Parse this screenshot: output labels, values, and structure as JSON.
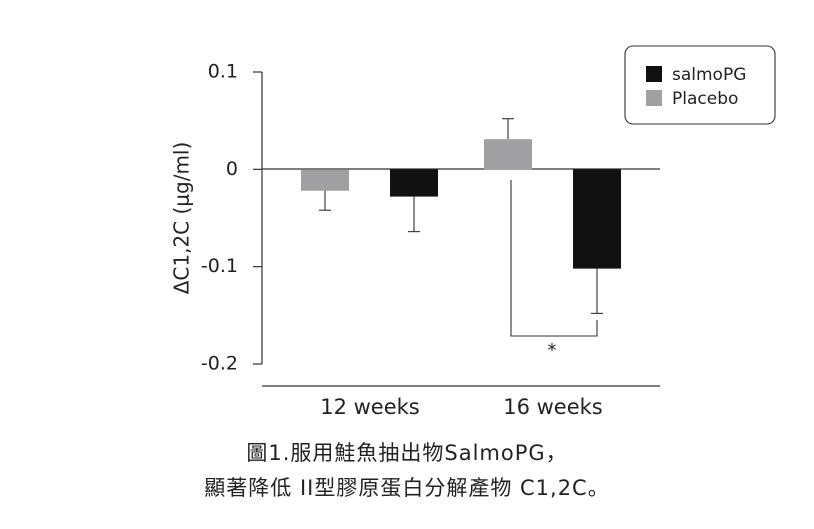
{
  "chart_data": {
    "type": "bar",
    "categories": [
      "12 weeks",
      "16 weeks"
    ],
    "series": [
      {
        "name": "Placebo",
        "color": "#a0a0a2",
        "values": [
          -0.022,
          0.031
        ],
        "errors": [
          0.02,
          0.021
        ]
      },
      {
        "name": "salmoPG",
        "color": "#111111",
        "values": [
          -0.028,
          -0.102
        ],
        "errors": [
          0.036,
          0.046
        ]
      }
    ],
    "ylabel": "ΔC1,2C (μg/ml)",
    "ylim": [
      -0.2,
      0.1
    ],
    "yticks": [
      0.1,
      0,
      -0.1,
      -0.2
    ],
    "ytick_labels": [
      "0.1",
      "0",
      "-0.1",
      "-0.2"
    ],
    "legend": {
      "placement": "top-right",
      "entries": [
        "salmoPG",
        "Placebo"
      ]
    },
    "significance": {
      "label": "*",
      "between": "16 weeks Placebo vs salmoPG"
    },
    "grid": false
  },
  "caption": {
    "line1": "圖1.服用鮭魚抽出物SalmoPG，",
    "line2": "顯著降低 II型膠原蛋白分解產物 C1,2C。"
  }
}
